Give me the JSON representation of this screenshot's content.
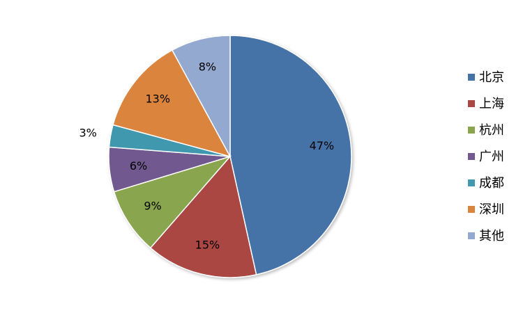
{
  "chart_data": {
    "type": "pie",
    "categories": [
      "北京",
      "上海",
      "杭州",
      "广州",
      "成都",
      "深圳",
      "其他"
    ],
    "values": [
      47,
      15,
      9,
      6,
      3,
      13,
      8
    ],
    "value_labels": [
      "47%",
      "15%",
      "9%",
      "6%",
      "3%",
      "13%",
      "8%"
    ],
    "colors": [
      "#4572A7",
      "#AA4643",
      "#89A54E",
      "#71588F",
      "#4198AF",
      "#DB843D",
      "#93A9CF"
    ],
    "legend": "right"
  }
}
